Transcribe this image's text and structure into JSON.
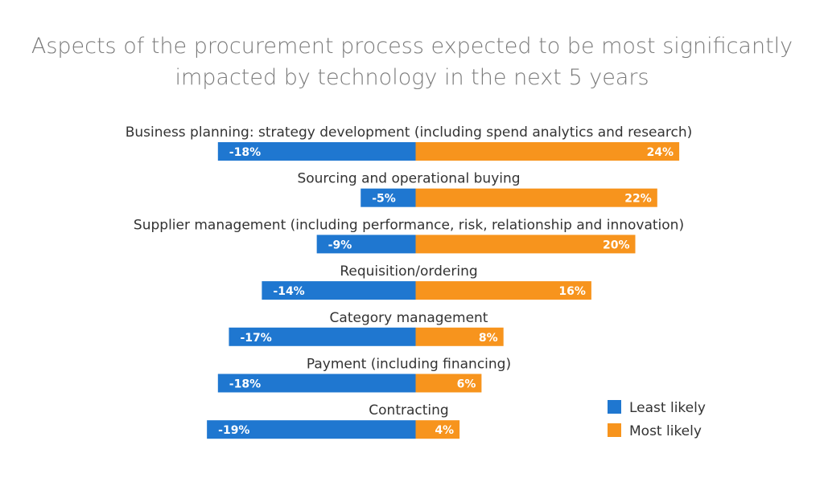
{
  "chart_data": {
    "type": "bar",
    "orientation": "horizontal-diverging",
    "title": "Aspects of the procurement process expected to be most significantly impacted by technology in the next 5 years",
    "categories": [
      "Business planning: strategy development (including spend analytics and research)",
      "Sourcing and operational buying",
      "Supplier management (including performance, risk, relationship and innovation)",
      "Requisition/ordering",
      "Category management",
      "Payment (including financing)",
      "Contracting"
    ],
    "series": [
      {
        "name": "Least likely",
        "color": "#1f77d0",
        "values": [
          -18,
          -5,
          -9,
          -14,
          -17,
          -18,
          -19
        ],
        "labels": [
          "-18%",
          "-5%",
          "-9%",
          "-14%",
          "-17%",
          "-18%",
          "-19%"
        ]
      },
      {
        "name": "Most likely",
        "color": "#f7941d",
        "values": [
          24,
          22,
          20,
          16,
          8,
          6,
          4
        ],
        "labels": [
          "24%",
          "22%",
          "20%",
          "16%",
          "8%",
          "6%",
          "4%"
        ]
      }
    ],
    "unit": "%",
    "grid": false,
    "legend": "bottom-right"
  }
}
